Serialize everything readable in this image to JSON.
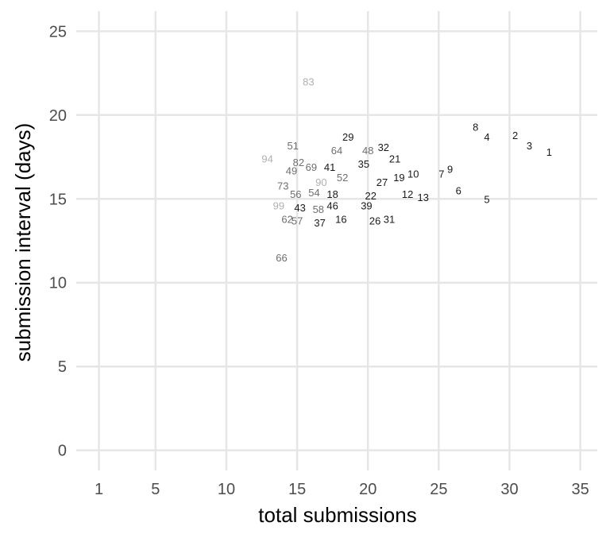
{
  "chart_data": {
    "type": "scatter",
    "title": "",
    "xlabel": "total submissions",
    "ylabel": "submission interval (days)",
    "xlim": [
      -0.6,
      36.2
    ],
    "ylim": [
      -1.2,
      26.2
    ],
    "x_ticks": [
      1,
      5,
      10,
      15,
      20,
      25,
      30,
      35
    ],
    "y_ticks": [
      0,
      5,
      10,
      15,
      20,
      25
    ],
    "grid": true,
    "legend": "none",
    "label_colors": {
      "dark": "#1a1a1a",
      "mid": "#6e6e6e",
      "light": "#b0b0b0"
    },
    "points": [
      {
        "label": "1",
        "x": 32.8,
        "y": 17.8,
        "shade": "dark"
      },
      {
        "label": "2",
        "x": 30.4,
        "y": 18.8,
        "shade": "dark"
      },
      {
        "label": "3",
        "x": 31.4,
        "y": 18.2,
        "shade": "dark"
      },
      {
        "label": "4",
        "x": 28.4,
        "y": 18.7,
        "shade": "dark"
      },
      {
        "label": "5",
        "x": 28.4,
        "y": 15.0,
        "shade": "dark"
      },
      {
        "label": "6",
        "x": 26.4,
        "y": 15.5,
        "shade": "dark"
      },
      {
        "label": "7",
        "x": 25.2,
        "y": 16.5,
        "shade": "dark"
      },
      {
        "label": "8",
        "x": 27.6,
        "y": 19.3,
        "shade": "dark"
      },
      {
        "label": "9",
        "x": 25.8,
        "y": 16.8,
        "shade": "dark"
      },
      {
        "label": "10",
        "x": 23.2,
        "y": 16.5,
        "shade": "dark"
      },
      {
        "label": "12",
        "x": 22.8,
        "y": 15.3,
        "shade": "dark"
      },
      {
        "label": "13",
        "x": 23.9,
        "y": 15.1,
        "shade": "dark"
      },
      {
        "label": "16",
        "x": 18.1,
        "y": 13.8,
        "shade": "dark"
      },
      {
        "label": "18",
        "x": 17.5,
        "y": 15.3,
        "shade": "dark"
      },
      {
        "label": "19",
        "x": 22.2,
        "y": 16.3,
        "shade": "dark"
      },
      {
        "label": "21",
        "x": 21.9,
        "y": 17.4,
        "shade": "dark"
      },
      {
        "label": "22",
        "x": 20.2,
        "y": 15.2,
        "shade": "dark"
      },
      {
        "label": "26",
        "x": 20.5,
        "y": 13.7,
        "shade": "dark"
      },
      {
        "label": "27",
        "x": 21.0,
        "y": 16.0,
        "shade": "dark"
      },
      {
        "label": "29",
        "x": 18.6,
        "y": 18.7,
        "shade": "dark"
      },
      {
        "label": "31",
        "x": 21.5,
        "y": 13.8,
        "shade": "dark"
      },
      {
        "label": "32",
        "x": 21.1,
        "y": 18.1,
        "shade": "dark"
      },
      {
        "label": "35",
        "x": 19.7,
        "y": 17.1,
        "shade": "dark"
      },
      {
        "label": "37",
        "x": 16.6,
        "y": 13.6,
        "shade": "dark"
      },
      {
        "label": "39",
        "x": 19.9,
        "y": 14.6,
        "shade": "dark"
      },
      {
        "label": "41",
        "x": 17.3,
        "y": 16.9,
        "shade": "dark"
      },
      {
        "label": "43",
        "x": 15.2,
        "y": 14.5,
        "shade": "dark"
      },
      {
        "label": "46",
        "x": 17.5,
        "y": 14.6,
        "shade": "dark"
      },
      {
        "label": "48",
        "x": 20.0,
        "y": 17.9,
        "shade": "mid"
      },
      {
        "label": "49",
        "x": 14.6,
        "y": 16.7,
        "shade": "mid"
      },
      {
        "label": "51",
        "x": 14.7,
        "y": 18.2,
        "shade": "mid"
      },
      {
        "label": "52",
        "x": 18.2,
        "y": 16.3,
        "shade": "mid"
      },
      {
        "label": "54",
        "x": 16.2,
        "y": 15.4,
        "shade": "mid"
      },
      {
        "label": "56",
        "x": 14.9,
        "y": 15.3,
        "shade": "mid"
      },
      {
        "label": "57",
        "x": 15.0,
        "y": 13.7,
        "shade": "mid"
      },
      {
        "label": "58",
        "x": 16.5,
        "y": 14.4,
        "shade": "mid"
      },
      {
        "label": "62",
        "x": 14.3,
        "y": 13.8,
        "shade": "mid"
      },
      {
        "label": "64",
        "x": 17.8,
        "y": 17.9,
        "shade": "mid"
      },
      {
        "label": "66",
        "x": 13.9,
        "y": 11.5,
        "shade": "mid"
      },
      {
        "label": "69",
        "x": 16.0,
        "y": 16.9,
        "shade": "mid"
      },
      {
        "label": "73",
        "x": 14.0,
        "y": 15.8,
        "shade": "mid"
      },
      {
        "label": "82",
        "x": 15.1,
        "y": 17.2,
        "shade": "mid"
      },
      {
        "label": "83",
        "x": 15.8,
        "y": 22.0,
        "shade": "light"
      },
      {
        "label": "90",
        "x": 16.7,
        "y": 16.0,
        "shade": "light"
      },
      {
        "label": "94",
        "x": 12.9,
        "y": 17.4,
        "shade": "light"
      },
      {
        "label": "99",
        "x": 13.7,
        "y": 14.6,
        "shade": "light"
      }
    ]
  }
}
